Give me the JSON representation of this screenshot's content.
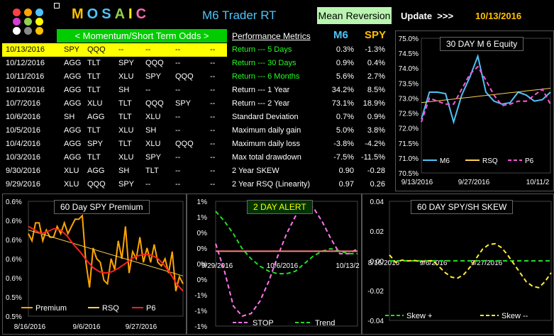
{
  "header": {
    "title": "MOSAIC",
    "title_letters": [
      {
        "ch": "M",
        "color": "#ffc000"
      },
      {
        "ch": "O",
        "color": "#4fc3f7"
      },
      {
        "ch": "S",
        "color": "#4fc3f7"
      },
      {
        "ch": "A",
        "color": "#92d050"
      },
      {
        "ch": "I",
        "color": "#ffff00"
      },
      {
        "ch": "C",
        "color": "#ff69b4"
      }
    ],
    "subtitle": "M6 Trader RT",
    "mode_button": "Mean Reversion",
    "update_label": "Update  >>>",
    "date": "10/13/2016"
  },
  "logo_colors": [
    "#ff4040",
    "#ffa500",
    "#4fc3f7",
    "#d040d0",
    "#92d050",
    "#ffff00",
    "#ffffff",
    "#888888",
    "#ffc000"
  ],
  "momentum_header": "< Momentum/Short Term Odds >",
  "performance": {
    "header": "Performance Metrics",
    "col_m6": "M6",
    "col_spy": "SPY",
    "rows": [
      {
        "label": "Return --- 5 Days",
        "m6": "0.3%",
        "spy": "-1.3%",
        "green": true
      },
      {
        "label": "Return --- 30 Days",
        "m6": "0.9%",
        "spy": "0.4%",
        "green": true
      },
      {
        "label": "Return --- 6 Months",
        "m6": "5.6%",
        "spy": "2.7%",
        "green": true
      },
      {
        "label": "Return --- 1 Year",
        "m6": "34.2%",
        "spy": "8.5%",
        "green": false
      },
      {
        "label": "Return --- 2 Year",
        "m6": "73.1%",
        "spy": "18.9%",
        "green": false
      },
      {
        "label": "Standard Deviation",
        "m6": "0.7%",
        "spy": "0.9%",
        "green": false
      },
      {
        "label": "Maximum daily gain",
        "m6": "5.0%",
        "spy": "3.8%",
        "green": false
      },
      {
        "label": "Maximum daily loss",
        "m6": "-3.8%",
        "spy": "-4.2%",
        "green": false
      },
      {
        "label": "Max total drawdown",
        "m6": "-7.5%",
        "spy": "-11.5%",
        "green": false
      },
      {
        "label": "2 Year SKEW",
        "m6": "0.90",
        "spy": "-0.28",
        "green": false
      },
      {
        "label": "2 Year RSQ  (Linearity)",
        "m6": "0.97",
        "spy": "0.26",
        "green": false
      }
    ]
  },
  "picks": [
    {
      "date": "10/13/2016",
      "p": [
        "SPY",
        "QQQ",
        "--",
        "--",
        "--",
        "--"
      ]
    },
    {
      "date": "10/12/2016",
      "p": [
        "AGG",
        "TLT",
        "SPY",
        "QQQ",
        "--",
        "--"
      ]
    },
    {
      "date": "10/11/2016",
      "p": [
        "AGG",
        "TLT",
        "XLU",
        "SPY",
        "QQQ",
        "--"
      ]
    },
    {
      "date": "10/10/2016",
      "p": [
        "AGG",
        "TLT",
        "SH",
        "--",
        "--",
        "--"
      ]
    },
    {
      "date": "10/7/2016",
      "p": [
        "AGG",
        "XLU",
        "TLT",
        "QQQ",
        "SPY",
        "--"
      ]
    },
    {
      "date": "10/6/2016",
      "p": [
        "SH",
        "AGG",
        "TLT",
        "XLU",
        "--",
        "--"
      ]
    },
    {
      "date": "10/5/2016",
      "p": [
        "AGG",
        "TLT",
        "XLU",
        "SH",
        "--",
        "--"
      ]
    },
    {
      "date": "10/4/2016",
      "p": [
        "AGG",
        "SPY",
        "TLT",
        "XLU",
        "QQQ",
        "--"
      ]
    },
    {
      "date": "10/3/2016",
      "p": [
        "AGG",
        "TLT",
        "XLU",
        "SPY",
        "--",
        "--"
      ]
    },
    {
      "date": "9/30/2016",
      "p": [
        "XLU",
        "AGG",
        "SH",
        "TLT",
        "--",
        "--"
      ]
    },
    {
      "date": "9/29/2016",
      "p": [
        "XLU",
        "QQQ",
        "SPY",
        "--",
        "--",
        "--"
      ]
    }
  ],
  "chart_data": [
    {
      "type": "line",
      "title": "30 DAY  M 6   Equity",
      "yticks": [
        "75.0%",
        "74.5%",
        "74.0%",
        "73.5%",
        "73.0%",
        "72.5%",
        "72.0%",
        "71.5%",
        "71.0%",
        "70.5%"
      ],
      "ylim": [
        70.5,
        75.0
      ],
      "xticks": [
        "9/13/2016",
        "9/27/2016",
        "10/11/2"
      ],
      "series": [
        {
          "name": "M6",
          "color": "#4fc3f7",
          "values": [
            72.3,
            73.2,
            73.2,
            73.15,
            72.2,
            73.1,
            73.7,
            74.4,
            73.2,
            72.9,
            72.8,
            72.85,
            73.2,
            73.1,
            72.9,
            72.95,
            73.2
          ]
        },
        {
          "name": "RSQ",
          "color": "#ffd24d",
          "values": [
            72.85,
            72.88,
            72.91,
            72.94,
            72.97,
            73.0,
            73.03,
            73.06,
            73.09,
            73.12,
            73.15,
            73.18,
            73.21,
            73.24,
            73.27,
            73.3,
            73.33
          ]
        },
        {
          "name": "P6",
          "color": "#ff55dd",
          "values": [
            72.2,
            73.0,
            72.9,
            72.8,
            72.8,
            73.3,
            73.8,
            74.05,
            73.6,
            73.1,
            72.75,
            72.8,
            72.9,
            72.9,
            73.1,
            73.3,
            72.8
          ]
        }
      ]
    },
    {
      "type": "line",
      "title": "60  Day   SPY Premium",
      "yticks": [
        "0.6%",
        "0.6%",
        "0.6%",
        "0.6%",
        "0.6%",
        "0.5%",
        "0.5%"
      ],
      "xticks": [
        "8/16/2016",
        "9/6/2016",
        "9/27/2016"
      ],
      "legend": [
        "Premium",
        "RSQ",
        "P6"
      ],
      "series": [
        {
          "name": "Premium",
          "color": "#ffa500",
          "values": [
            0.615,
            0.605,
            0.63,
            0.63,
            0.605,
            0.62,
            0.61,
            0.61,
            0.625,
            0.615,
            0.63,
            0.615,
            0.625,
            0.635,
            0.635,
            0.64,
            0.575,
            0.54,
            0.595,
            0.58,
            0.575,
            0.55,
            0.545,
            0.58,
            0.565,
            0.605,
            0.58,
            0.625,
            0.56,
            0.59,
            0.58,
            0.61,
            0.575,
            0.595,
            0.575,
            0.6,
            0.575,
            0.57,
            0.58,
            0.56,
            0.59,
            0.535,
            0.555,
            0.545
          ]
        },
        {
          "name": "RSQ",
          "color": "#ffd24d",
          "values": [
            0.62,
            0.556
          ]
        },
        {
          "name": "P6",
          "color": "#ff2020",
          "values": [
            0.625,
            0.62,
            0.615,
            0.618,
            0.622,
            0.62,
            0.612,
            0.6,
            0.59,
            0.578,
            0.568,
            0.562,
            0.56,
            0.562,
            0.567,
            0.573,
            0.58,
            0.584,
            0.586,
            0.585,
            0.581,
            0.572,
            0.56,
            0.545,
            0.535
          ]
        }
      ]
    },
    {
      "type": "line",
      "title": "2 DAY  ALERT",
      "yticks": [
        "1%",
        "1%",
        "0%",
        "0%",
        "0%",
        "0%",
        "-1%",
        "-1%",
        "-1%"
      ],
      "xticks": [
        "9/29/2016",
        "10/6/2016",
        "10/13/2"
      ],
      "legend": [
        "STOP",
        "Trend"
      ],
      "series": [
        {
          "name": "STOP",
          "color": "#ff77ee",
          "values": [
            0.15,
            -0.4,
            -1.1,
            -1.3,
            -1.25,
            -1.0,
            -0.6,
            -0.1,
            0.35,
            0.7,
            0.9,
            0.88,
            0.6,
            0.25,
            -0.05,
            -0.05,
            0.05
          ]
        },
        {
          "name": "Trend",
          "color": "#22dd22",
          "values": [
            0.8,
            0.6,
            0.35,
            0.05,
            -0.15,
            -0.3,
            -0.4,
            -0.45,
            -0.45,
            -0.4,
            -0.25,
            -0.1,
            0.0,
            0.05,
            0.0,
            -0.05,
            -0.05
          ]
        },
        {
          "name": "zero",
          "color": "#ff8080",
          "values": [
            0,
            0
          ]
        }
      ]
    },
    {
      "type": "line",
      "title": "60  DAY  SPY/SH  SKEW",
      "yticks": [
        "0.04",
        "0.02",
        "0.00",
        "-0.02",
        "-0.04"
      ],
      "ylim": [
        -0.04,
        0.04
      ],
      "xticks": [
        "8/16/2016",
        "9/6/2016",
        "9/27/2016"
      ],
      "legend": [
        "Skew +",
        "Skew --"
      ],
      "series": [
        {
          "name": "Skew +",
          "color": "#22dd22",
          "values": [
            0.0,
            0.0
          ]
        },
        {
          "name": "Skew --",
          "color": "#ffee33",
          "values": [
            0.004,
            -0.001,
            0.0005,
            0.0,
            0.0003,
            -0.0005,
            0.0,
            0.0,
            -0.004,
            -0.008,
            -0.011,
            -0.0115,
            -0.009,
            -0.004,
            0.002,
            0.008,
            0.011,
            0.0115,
            0.009,
            0.004,
            -0.002,
            -0.008,
            -0.014,
            -0.017,
            -0.018,
            -0.014,
            -0.008
          ]
        }
      ]
    }
  ]
}
